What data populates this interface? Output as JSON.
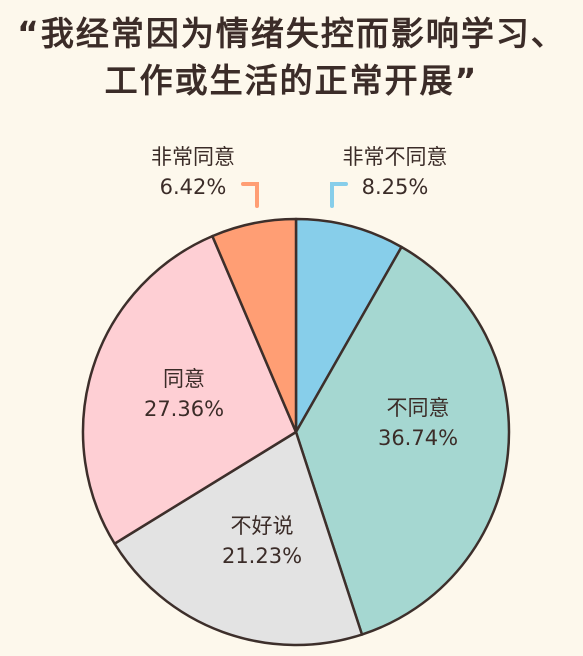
{
  "chart_data": {
    "type": "pie",
    "title_lines": [
      "“我经常因为情绪失控而影响学习、",
      "工作或生活的正常开展”"
    ],
    "categories": [
      "非常不同意",
      "不同意",
      "不好说",
      "同意",
      "非常同意"
    ],
    "values": [
      8.25,
      36.74,
      21.23,
      27.36,
      6.42
    ],
    "value_labels": [
      "8.25%",
      "36.74%",
      "21.23%",
      "27.36%",
      "6.42%"
    ],
    "colors": [
      "#87ceea",
      "#a5d7d1",
      "#e3e3e3",
      "#fecfd4",
      "#ff9e74"
    ],
    "start": "top, clockwise",
    "legend": "none"
  }
}
